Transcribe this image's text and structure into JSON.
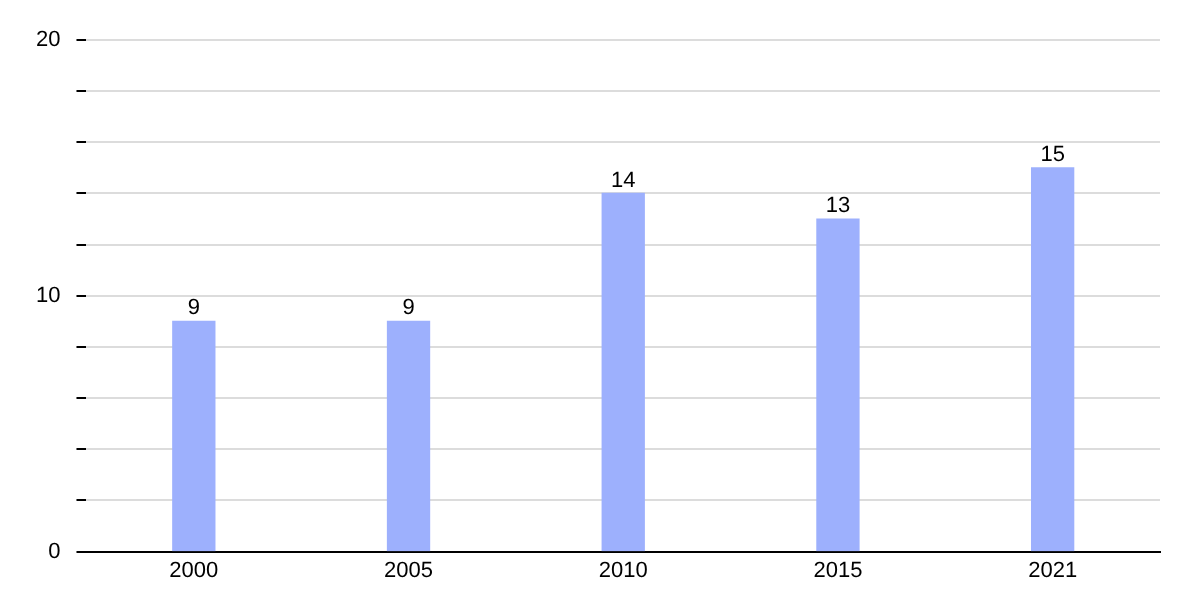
{
  "chart_data": {
    "type": "bar",
    "categories": [
      "2000",
      "2005",
      "2010",
      "2015",
      "2021"
    ],
    "values": [
      9,
      9,
      14,
      13,
      15
    ],
    "color": "#9db0fd",
    "ylim": [
      0,
      20
    ],
    "yticks": [
      0,
      {
        "value": 2,
        "label": null
      },
      {
        "value": 4,
        "label": null
      },
      {
        "value": 6,
        "label": null
      },
      {
        "value": 8,
        "label": null
      },
      10,
      {
        "value": 12,
        "label": null
      },
      {
        "value": 14,
        "label": null
      },
      {
        "value": 16,
        "label": null
      },
      {
        "value": 18,
        "label": null
      },
      20
    ],
    "grid": "y",
    "data_labels": true,
    "legend": false
  }
}
